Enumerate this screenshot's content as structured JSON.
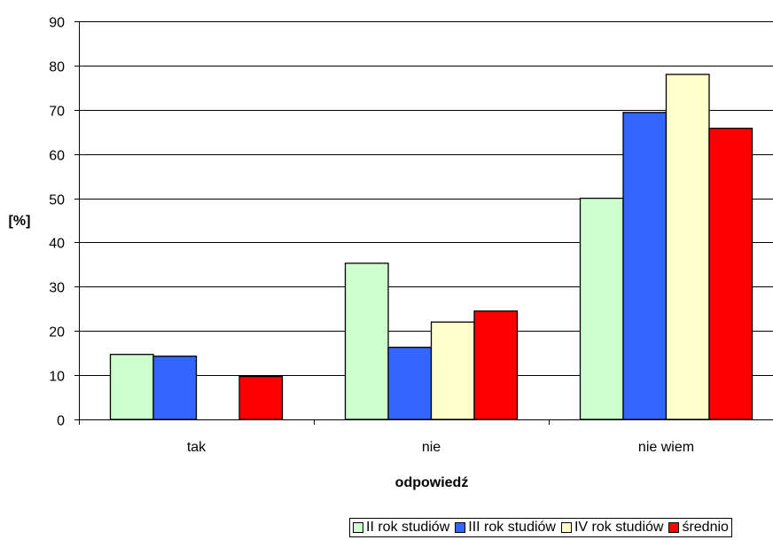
{
  "chart_data": {
    "type": "bar",
    "categories": [
      "tak",
      "nie",
      "nie wiem"
    ],
    "series": [
      {
        "name": "II rok studiów",
        "color": "#ccffcc",
        "values": [
          14.7,
          35.3,
          50.0
        ]
      },
      {
        "name": "III rok studiów",
        "color": "#3366ff",
        "values": [
          14.3,
          16.3,
          69.4
        ]
      },
      {
        "name": "IV rok studiów",
        "color": "#ffffcc",
        "values": [
          0,
          22.0,
          78.0
        ]
      },
      {
        "name": "średnio",
        "color": "#ff0000",
        "values": [
          9.7,
          24.5,
          65.8
        ]
      }
    ],
    "ylabel": "[%]",
    "xlabel": "odpowiedź",
    "ylim": [
      0,
      90
    ],
    "yticks": [
      0,
      10,
      20,
      30,
      40,
      50,
      60,
      70,
      80,
      90
    ],
    "grid": true,
    "legend_position": "bottom"
  }
}
